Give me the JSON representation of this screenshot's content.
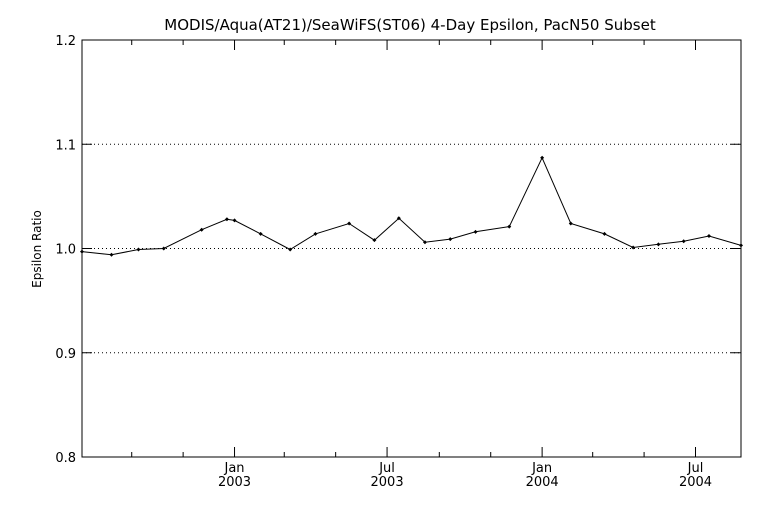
{
  "chart_data": {
    "type": "line",
    "title": "MODIS/Aqua(AT21)/SeaWiFS(ST06) 4-Day Epsilon, PacN50 Subset",
    "xlabel": "",
    "ylabel": "Epsilon Ratio",
    "ylim": [
      0.8,
      1.2
    ],
    "yticks": [
      0.8,
      0.9,
      1.0,
      1.1,
      1.2
    ],
    "ytick_labels": [
      "0.8",
      "0.9",
      "1.0",
      "1.1",
      "1.2"
    ],
    "grid": "horizontal dotted at 0.9, 1.0, 1.1",
    "xlim": [
      "2002-07-04",
      "2004-08-24"
    ],
    "xticks_major": [
      {
        "date": "2003-01-01",
        "line1": "Jan",
        "line2": "2003"
      },
      {
        "date": "2003-07-01",
        "line1": "Jul",
        "line2": "2003"
      },
      {
        "date": "2004-01-01",
        "line1": "Jan",
        "line2": "2004"
      },
      {
        "date": "2004-07-01",
        "line1": "Jul",
        "line2": "2004"
      }
    ],
    "xticks_minor": [
      "2002-09-01",
      "2002-11-01",
      "2003-03-01",
      "2003-05-01",
      "2003-09-01",
      "2003-11-01",
      "2004-03-01",
      "2004-05-01"
    ],
    "series": [
      {
        "color": "#000000",
        "x": [
          "2002-07-04",
          "2002-08-08",
          "2002-09-09",
          "2002-10-09",
          "2002-11-23",
          "2002-12-23",
          "2003-01-01",
          "2003-02-01",
          "2003-03-08",
          "2003-04-07",
          "2003-05-17",
          "2003-06-16",
          "2003-07-15",
          "2003-08-15",
          "2003-09-14",
          "2003-10-14",
          "2003-11-23",
          "2004-01-01",
          "2004-02-04",
          "2004-03-15",
          "2004-04-18",
          "2004-05-18",
          "2004-06-17",
          "2004-07-17",
          "2004-08-24"
        ],
        "values": [
          0.997,
          0.994,
          0.999,
          1.0,
          1.018,
          1.028,
          1.027,
          1.014,
          0.999,
          1.014,
          1.024,
          1.008,
          1.029,
          1.006,
          1.009,
          1.016,
          1.021,
          1.087,
          1.024,
          1.014,
          1.001,
          1.004,
          1.007,
          1.012,
          1.003
        ]
      }
    ]
  }
}
